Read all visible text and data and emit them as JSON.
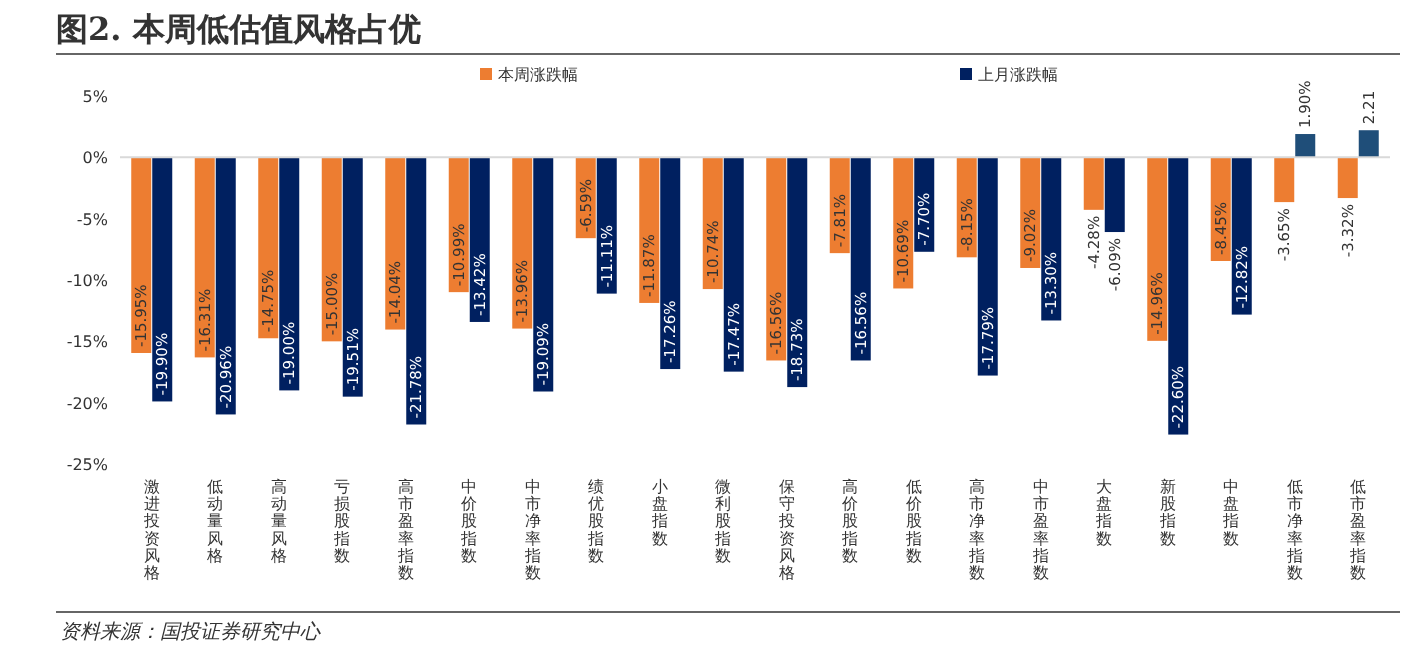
{
  "chart_data": {
    "type": "bar",
    "title": "图2. 本周低估值风格占优",
    "categories": [
      "激进投资风格",
      "低动量风格",
      "高动量风格",
      "亏损股指数",
      "高市盈率指数",
      "中价股指数",
      "中市净率指数",
      "绩优股指数",
      "小盘指数",
      "微利股指数",
      "保守投资风格",
      "高价股指数",
      "低价股指数",
      "高市净率指数",
      "中市盈率指数",
      "大盘指数",
      "新股指数",
      "中盘指数",
      "低市净率指数",
      "低市盈率指数"
    ],
    "series": [
      {
        "name": "本周涨跌幅",
        "color": "#ed7d31",
        "values": [
          -15.95,
          -16.31,
          -14.75,
          -15.0,
          -14.04,
          -10.99,
          -13.96,
          -6.59,
          -11.87,
          -10.74,
          -16.56,
          -7.81,
          -10.69,
          -8.15,
          -9.02,
          -4.28,
          -14.96,
          -8.45,
          -3.65,
          -3.32
        ],
        "value_labels": [
          "-15.95%",
          "-16.31%",
          "-14.75%",
          "-15.00%",
          "-14.04%",
          "-10.99%",
          "-13.96%",
          "-6.59%",
          "-11.87%",
          "-10.74%",
          "-16.56%",
          "-7.81%",
          "-10.69%",
          "-8.15%",
          "-9.02%",
          "-4.28%",
          "-14.96%",
          "-8.45%",
          "-3.65%",
          "-3.32%"
        ]
      },
      {
        "name": "上月涨跌幅",
        "color": "#002060",
        "colors": [
          "#002060",
          "#002060",
          "#002060",
          "#002060",
          "#002060",
          "#002060",
          "#002060",
          "#002060",
          "#002060",
          "#002060",
          "#002060",
          "#002060",
          "#002060",
          "#002060",
          "#002060",
          "#002060",
          "#002060",
          "#002060",
          "#1f4e79",
          "#1f4e79"
        ],
        "values": [
          -19.9,
          -20.96,
          -19.0,
          -19.51,
          -21.78,
          -13.42,
          -19.09,
          -11.11,
          -17.26,
          -17.47,
          -18.73,
          -16.56,
          -7.7,
          -17.79,
          -13.3,
          -6.09,
          -22.6,
          -12.82,
          1.9,
          2.21
        ],
        "value_labels": [
          "-19.90%",
          "-20.96%",
          "-19.00%",
          "-19.51%",
          "-21.78%",
          "-13.42%",
          "-19.09%",
          "-11.11%",
          "-17.26%",
          "-17.47%",
          "-18.73%",
          "-16.56%",
          "-7.70%",
          "-17.79%",
          "-13.30%",
          "-6.09%",
          "-22.60%",
          "-12.82%",
          "1.90%",
          "2.21"
        ]
      }
    ],
    "ylim": [
      -25,
      5
    ],
    "yticks": [
      {
        "value": 5,
        "label": "5%"
      },
      {
        "value": 0,
        "label": "0%"
      },
      {
        "value": -5,
        "label": "-5%"
      },
      {
        "value": -10,
        "label": "-10%"
      },
      {
        "value": -15,
        "label": "-15%"
      },
      {
        "value": -20,
        "label": "-20%"
      },
      {
        "value": -25,
        "label": "-25%"
      }
    ],
    "legend": "top",
    "annotations": [
      "资料来源：国投证券研究中心"
    ]
  }
}
